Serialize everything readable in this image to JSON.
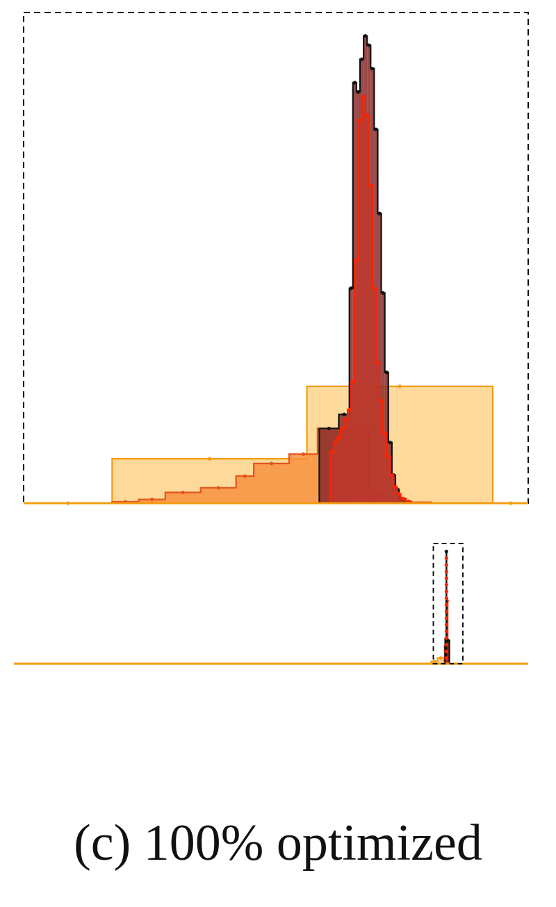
{
  "caption": "(c) 100% optimized",
  "chart_data": {
    "type": "area",
    "panels": [
      {
        "kind": "zoomed-inset",
        "xlim": [
          -14,
          14.5
        ],
        "ylim": [
          0,
          1.05
        ],
        "grid": false,
        "series": [
          {
            "style": "coarse-bins",
            "edges": [
              -14,
              -9,
              2,
              12.5,
              14.5
            ],
            "values": [
              0,
              0.095,
              0.25,
              0
            ],
            "color": "#f39c12",
            "fill": "#fdd48a"
          },
          {
            "style": "medium-bins",
            "edges": [
              -9,
              -7.5,
              -6,
              -4,
              -2,
              -1,
              1,
              2.6,
              5.5,
              6.5,
              9
            ],
            "values": [
              0.003,
              0.008,
              0.023,
              0.033,
              0.058,
              0.085,
              0.105,
              0.16,
              0.02,
              0.002
            ],
            "color": "#e5541c",
            "fill": "#f7913f"
          },
          {
            "style": "ref-histogram",
            "edges": [
              2.7,
              3.8,
              4.4,
              4.6,
              4.8,
              5.0,
              5.2,
              5.4,
              5.6,
              5.8,
              6.0,
              6.2,
              6.4,
              6.6,
              6.8,
              7.0,
              7.2,
              7.4,
              7.6
            ],
            "values": [
              0.16,
              0.19,
              0.46,
              0.9,
              0.88,
              0.95,
              1.0,
              0.98,
              0.93,
              0.8,
              0.62,
              0.45,
              0.28,
              0.13,
              0.06,
              0.03,
              0.01,
              0.003
            ],
            "color": "#111111",
            "fill": "#8b2a2a"
          },
          {
            "style": "optimized-histogram",
            "edges": [
              3.3,
              3.5,
              3.7,
              3.9,
              4.1,
              4.3,
              4.5,
              4.7,
              4.9,
              5.1,
              5.3,
              5.5,
              5.7,
              5.9,
              6.1,
              6.3,
              6.5,
              6.7,
              6.9,
              7.1,
              7.3,
              7.6,
              7.9
            ],
            "values": [
              0.11,
              0.13,
              0.14,
              0.16,
              0.18,
              0.2,
              0.26,
              0.52,
              0.82,
              0.87,
              0.83,
              0.68,
              0.46,
              0.3,
              0.22,
              0.15,
              0.1,
              0.06,
              0.035,
              0.02,
              0.01,
              0.004
            ],
            "color": "#ff2200",
            "fill": "#c0392b"
          }
        ]
      },
      {
        "kind": "full-range",
        "xlim": [
          -100,
          22
        ],
        "ylim": [
          0,
          1.05
        ],
        "grid": false,
        "zoom_box_x": [
          -0.5,
          6.5
        ],
        "series": [
          {
            "style": "coarse-bins",
            "edges": [
              -1,
              0.5,
              2
            ],
            "values": [
              0.02,
              0.05
            ],
            "color": "#f39c12",
            "fill": "#fdd48a"
          },
          {
            "style": "optimized-histogram",
            "edges": [
              2.2,
              2.6,
              2.9,
              3.2
            ],
            "values": [
              0.15,
              0.55,
              0.18
            ],
            "color": "#ff2200",
            "fill": "#c0392b"
          },
          {
            "style": "ref-histogram",
            "edges": [
              2.3,
              2.9,
              3.3
            ],
            "values": [
              0.22,
              0.2
            ],
            "color": "#111111",
            "fill": "#8b2a2a"
          }
        ],
        "spike": {
          "x": 2.6,
          "y_low": 0.05,
          "y_high": 0.98,
          "peak_color": "#111111",
          "dot_color": "#ff2200"
        }
      }
    ]
  }
}
